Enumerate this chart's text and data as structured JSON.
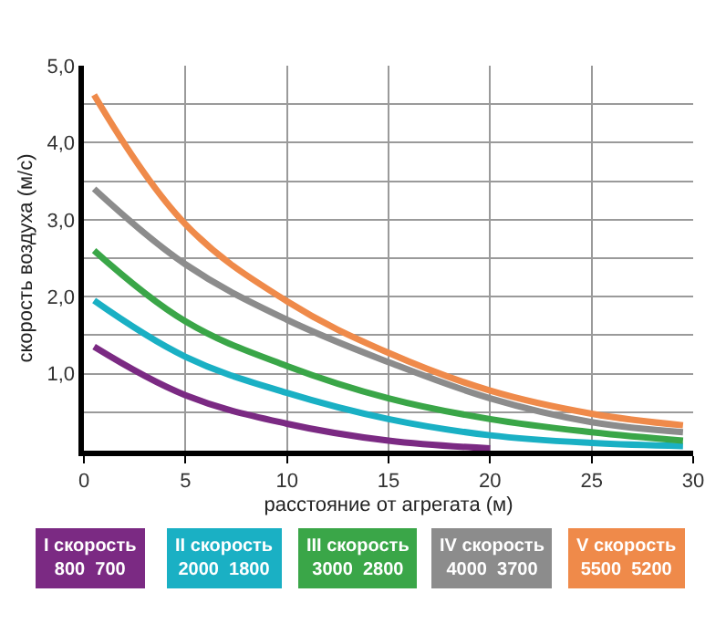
{
  "chart_data": {
    "type": "line",
    "xlabel": "расстояние от агрегата (м)",
    "ylabel": "скорость воздуха (м/с)",
    "xlim": [
      0,
      30
    ],
    "ylim": [
      0,
      5
    ],
    "xticks": [
      0,
      5,
      10,
      15,
      20,
      25,
      30
    ],
    "yticks": [
      {
        "value": 0,
        "label": null
      },
      {
        "value": 0.5,
        "label": null
      },
      {
        "value": 1,
        "label": "1,0"
      },
      {
        "value": 1.5,
        "label": null
      },
      {
        "value": 2,
        "label": "2,0"
      },
      {
        "value": 2.5,
        "label": null
      },
      {
        "value": 3,
        "label": "3,0"
      },
      {
        "value": 3.5,
        "label": null
      },
      {
        "value": 4,
        "label": "4,0"
      },
      {
        "value": 4.5,
        "label": null
      },
      {
        "value": 5,
        "label": "5,0"
      }
    ],
    "grid": true,
    "legend": "bottom",
    "marker": "none",
    "line_style": "solid",
    "series": [
      {
        "name": "I скорость\n800  700",
        "color": "#7b2a83",
        "x": [
          0.5,
          5,
          10,
          15,
          20
        ],
        "values": [
          1.35,
          0.72,
          0.35,
          0.13,
          0.03
        ]
      },
      {
        "name": "II скорость\n2000  1800",
        "color": "#1ab0c4",
        "x": [
          0.5,
          5,
          10,
          15,
          20,
          25,
          29.5
        ],
        "values": [
          1.95,
          1.22,
          0.75,
          0.41,
          0.2,
          0.1,
          0.06
        ]
      },
      {
        "name": "III скорость\n3000  2800",
        "color": "#3aa648",
        "x": [
          0.5,
          5,
          10,
          15,
          20,
          25,
          29.5
        ],
        "values": [
          2.6,
          1.68,
          1.1,
          0.68,
          0.41,
          0.24,
          0.13
        ]
      },
      {
        "name": "IV скорость\n4000  3700",
        "color": "#8c8c8c",
        "x": [
          0.5,
          5,
          10,
          15,
          20,
          25,
          29.5
        ],
        "values": [
          3.4,
          2.42,
          1.7,
          1.15,
          0.68,
          0.37,
          0.24
        ]
      },
      {
        "name": "V скорость\n5500  5200",
        "color": "#ef8a4a",
        "x": [
          0.5,
          5,
          10,
          15,
          20,
          25,
          29.5
        ],
        "values": [
          4.62,
          2.94,
          1.94,
          1.27,
          0.78,
          0.48,
          0.33
        ]
      }
    ]
  }
}
